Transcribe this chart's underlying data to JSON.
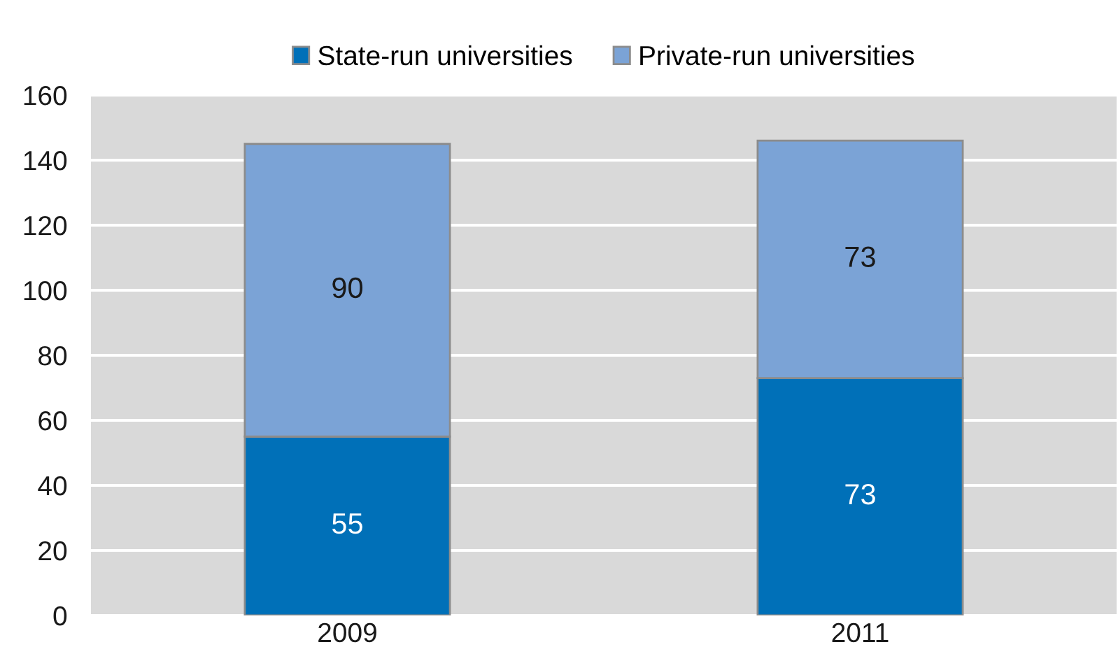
{
  "chart_data": {
    "type": "bar",
    "stacked": true,
    "categories": [
      "2009",
      "2011"
    ],
    "series": [
      {
        "name": "State-run universities",
        "color": "#0070b8",
        "values": [
          55,
          73
        ]
      },
      {
        "name": "Private-run universities",
        "color": "#7ba3d6",
        "values": [
          90,
          73
        ]
      }
    ],
    "ylim": [
      0,
      160
    ],
    "yticks": [
      0,
      20,
      40,
      60,
      80,
      100,
      120,
      140,
      160
    ],
    "grid": "y",
    "legend": "top",
    "data_labels": true
  }
}
